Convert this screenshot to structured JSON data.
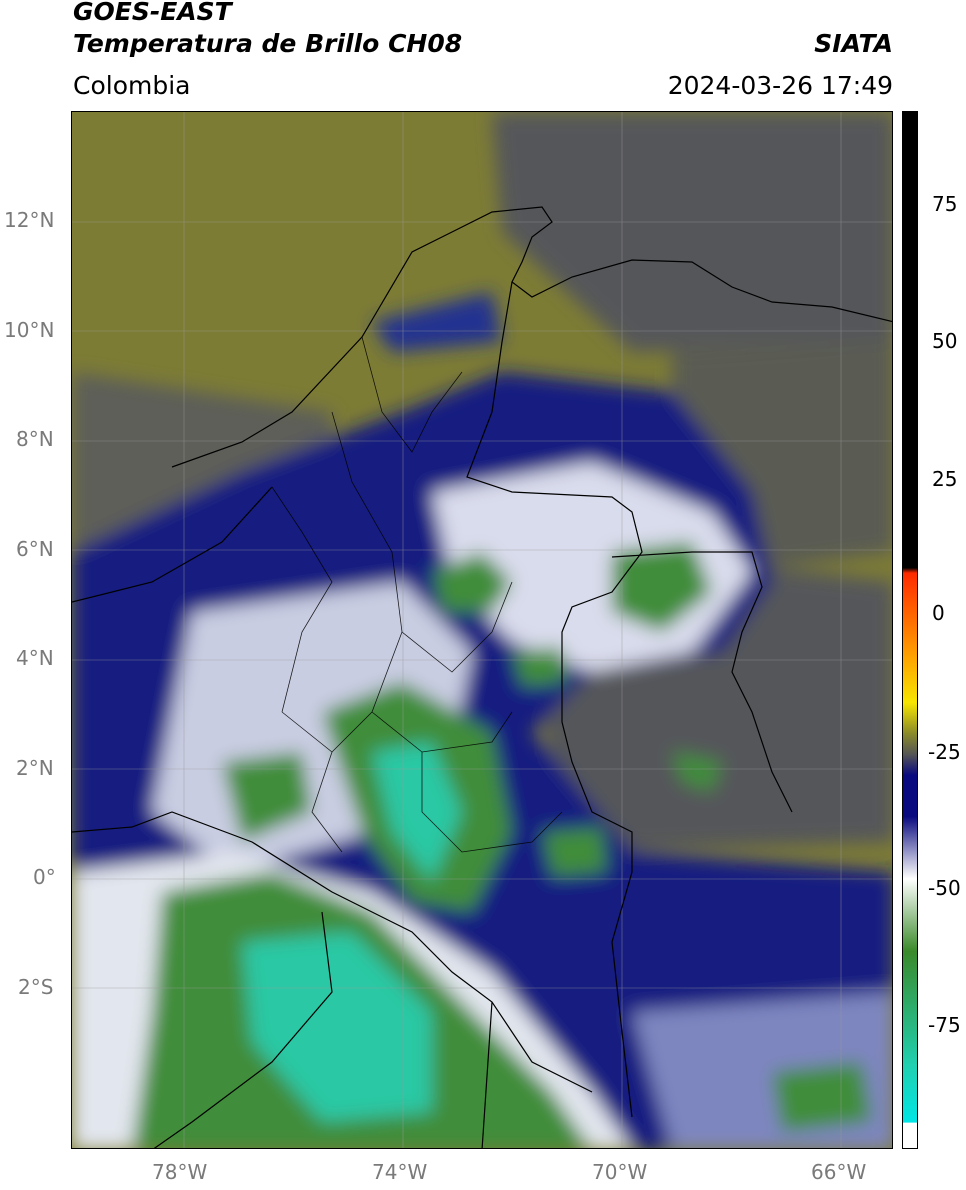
{
  "header": {
    "satellite": "GOES-EAST",
    "product": "Temperatura de Brillo CH08",
    "org": "SIATA",
    "region": "Colombia",
    "datetime": "2024-03-26 17:49"
  },
  "axes": {
    "lat_labels": [
      "12°N",
      "10°N",
      "8°N",
      "6°N",
      "4°N",
      "2°N",
      "0°",
      "2°S"
    ],
    "lon_labels": [
      "78°W",
      "74°W",
      "70°W",
      "66°W"
    ]
  },
  "colorbar": {
    "tick_labels": [
      "75",
      "50",
      "25",
      "0",
      "-25",
      "-50",
      "-75"
    ],
    "colors": {
      "top": "#000000",
      "warm": "#ff2a00",
      "orange": "#ff9900",
      "yellow": "#f7e600",
      "olive": "#8a8a2a",
      "gray": "#555555",
      "navy": "#0a0a80",
      "white": "#ffffff",
      "green": "#3a8a2a",
      "teal": "#20d0b0",
      "cyan": "#00e5e5"
    }
  },
  "map": {
    "colors": {
      "ocean_olive": "#7d7c35",
      "gray_cloud": "#55565a",
      "deep_navy": "#121a80",
      "white_cloud": "#e8eaf2",
      "green_cold": "#3f8d3a",
      "teal_cold": "#2cc8a4"
    }
  }
}
